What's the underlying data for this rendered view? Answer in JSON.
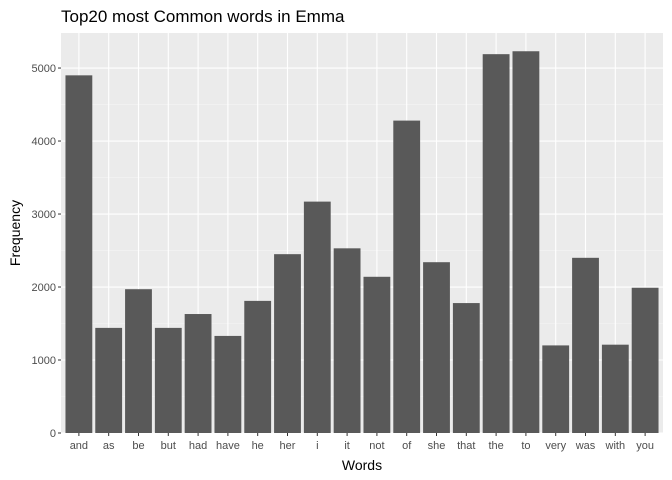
{
  "chart_data": {
    "type": "bar",
    "title": "Top20 most Common words in Emma",
    "xlabel": "Words",
    "ylabel": "Frequency",
    "categories": [
      "and",
      "as",
      "be",
      "but",
      "had",
      "have",
      "he",
      "her",
      "i",
      "it",
      "not",
      "of",
      "she",
      "that",
      "the",
      "to",
      "very",
      "was",
      "with",
      "you"
    ],
    "values": [
      4900,
      1440,
      1970,
      1440,
      1630,
      1330,
      1810,
      2450,
      3170,
      2530,
      2140,
      4280,
      2340,
      1780,
      5190,
      5230,
      1200,
      2400,
      1210,
      1990
    ],
    "ylim": [
      0,
      5480
    ],
    "yticks": [
      0,
      1000,
      2000,
      3000,
      4000,
      5000
    ],
    "grid": true,
    "legend": "none",
    "colors": {
      "bar": "#595959",
      "panel": "#ebebeb",
      "grid_major": "#ffffff",
      "grid_minor": "#f5f5f5"
    }
  }
}
